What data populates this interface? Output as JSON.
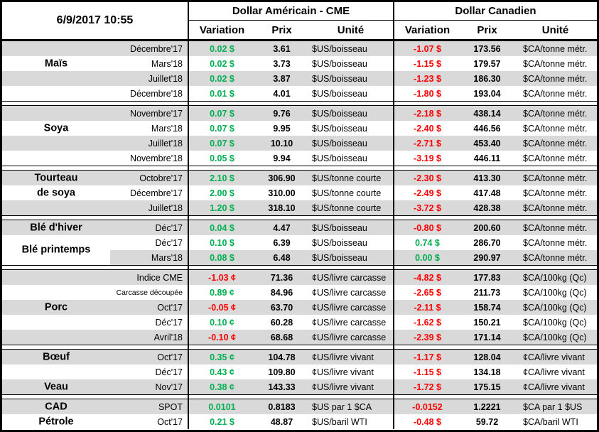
{
  "meta": {
    "timestamp": "6/9/2017 10:55"
  },
  "header": {
    "us_title": "Dollar Américain - CME",
    "ca_title": "Dollar Canadien",
    "cols": {
      "variation": "Variation",
      "prix": "Prix",
      "unite": "Unité"
    }
  },
  "colors": {
    "up": "#00B050",
    "down": "#FF0000",
    "stripe": "#D9D9D9"
  },
  "groups": [
    {
      "labels": [
        {
          "text": "Maïs",
          "row": 1.5
        }
      ],
      "rows": [
        {
          "month": "Décembre'17",
          "shade": "gray",
          "us": {
            "var": "0.02 $",
            "prix": "3.61",
            "unit": "$US/boisseau"
          },
          "ca": {
            "var": "-1.07 $",
            "prix": "173.56",
            "unit": "$CA/tonne métr."
          }
        },
        {
          "month": "Mars'18",
          "shade": "white",
          "us": {
            "var": "0.02 $",
            "prix": "3.73",
            "unit": "$US/boisseau"
          },
          "ca": {
            "var": "-1.15 $",
            "prix": "179.57",
            "unit": "$CA/tonne métr."
          }
        },
        {
          "month": "Juillet'18",
          "shade": "gray",
          "us": {
            "var": "0.02 $",
            "prix": "3.87",
            "unit": "$US/boisseau"
          },
          "ca": {
            "var": "-1.23 $",
            "prix": "186.30",
            "unit": "$CA/tonne métr."
          }
        },
        {
          "month": "Décembre'18",
          "shade": "white",
          "us": {
            "var": "0.01 $",
            "prix": "4.01",
            "unit": "$US/boisseau"
          },
          "ca": {
            "var": "-1.80 $",
            "prix": "193.04",
            "unit": "$CA/tonne métr."
          }
        }
      ]
    },
    {
      "labels": [
        {
          "text": "Soya",
          "row": 1.5
        }
      ],
      "rows": [
        {
          "month": "Novembre'17",
          "shade": "gray",
          "us": {
            "var": "0.07 $",
            "prix": "9.76",
            "unit": "$US/boisseau"
          },
          "ca": {
            "var": "-2.18 $",
            "prix": "438.14",
            "unit": "$CA/tonne métr."
          }
        },
        {
          "month": "Mars'18",
          "shade": "white",
          "us": {
            "var": "0.07 $",
            "prix": "9.95",
            "unit": "$US/boisseau"
          },
          "ca": {
            "var": "-2.40 $",
            "prix": "446.56",
            "unit": "$CA/tonne métr."
          }
        },
        {
          "month": "Juillet'18",
          "shade": "gray",
          "us": {
            "var": "0.07 $",
            "prix": "10.10",
            "unit": "$US/boisseau"
          },
          "ca": {
            "var": "-2.71 $",
            "prix": "453.40",
            "unit": "$CA/tonne métr."
          }
        },
        {
          "month": "Novembre'18",
          "shade": "white",
          "us": {
            "var": "0.05 $",
            "prix": "9.94",
            "unit": "$US/boisseau"
          },
          "ca": {
            "var": "-3.19 $",
            "prix": "446.11",
            "unit": "$CA/tonne métr."
          }
        }
      ]
    },
    {
      "labels": [
        {
          "text": "Tourteau",
          "row": 0.5
        },
        {
          "text": "de soya",
          "row": 1.5
        }
      ],
      "rows": [
        {
          "month": "Octobre'17",
          "shade": "gray",
          "us": {
            "var": "2.10 $",
            "prix": "306.90",
            "unit": "$US/tonne courte"
          },
          "ca": {
            "var": "-2.30 $",
            "prix": "413.30",
            "unit": "$CA/tonne métr."
          }
        },
        {
          "month": "Décembre'17",
          "shade": "white",
          "us": {
            "var": "2.00 $",
            "prix": "310.00",
            "unit": "$US/tonne courte"
          },
          "ca": {
            "var": "-2.49 $",
            "prix": "417.48",
            "unit": "$CA/tonne métr."
          }
        },
        {
          "month": "Juillet'18",
          "shade": "gray",
          "us": {
            "var": "1.20 $",
            "prix": "318.10",
            "unit": "$US/tonne courte"
          },
          "ca": {
            "var": "-3.72 $",
            "prix": "428.38",
            "unit": "$CA/tonne métr."
          }
        }
      ]
    },
    {
      "labels": [
        {
          "text": "Blé d'hiver",
          "row": 0.5
        },
        {
          "text": "Blé printemps",
          "row": 2.0
        }
      ],
      "rows": [
        {
          "month": "Déc'17",
          "shade": "gray",
          "us": {
            "var": "0.04 $",
            "prix": "4.47",
            "unit": "$US/boisseau"
          },
          "ca": {
            "var": "-0.80 $",
            "prix": "200.60",
            "unit": "$CA/tonne métr."
          }
        },
        {
          "month": "Déc'17",
          "shade": "white",
          "us": {
            "var": "0.10 $",
            "prix": "6.39",
            "unit": "$US/boisseau"
          },
          "ca": {
            "var": "0.74 $",
            "prix": "286.70",
            "unit": "$CA/tonne métr."
          }
        },
        {
          "month": "Mars'18",
          "shade": "partial",
          "us": {
            "var": "0.08 $",
            "prix": "6.48",
            "unit": "$US/boisseau"
          },
          "ca": {
            "var": "0.00 $",
            "prix": "290.97",
            "unit": "$CA/tonne métr."
          }
        }
      ]
    },
    {
      "labels": [
        {
          "text": "Porc",
          "row": 2.5
        }
      ],
      "rows": [
        {
          "month": "Indice CME",
          "shade": "gray",
          "us": {
            "var": "-1.03 ¢",
            "prix": "71.36",
            "unit": "¢US/livre carcasse"
          },
          "ca": {
            "var": "-4.82 $",
            "prix": "177.83",
            "unit": "$CA/100kg (Qc)"
          }
        },
        {
          "month": "Carcasse découpée",
          "shade": "white",
          "us": {
            "var": "0.89 ¢",
            "prix": "84.96",
            "unit": "¢US/livre carcasse"
          },
          "ca": {
            "var": "-2.65 $",
            "prix": "211.73",
            "unit": "$CA/100kg (Qc)"
          }
        },
        {
          "month": "Oct'17",
          "shade": "gray",
          "us": {
            "var": "-0.05 ¢",
            "prix": "63.70",
            "unit": "¢US/livre carcasse"
          },
          "ca": {
            "var": "-2.11 $",
            "prix": "158.74",
            "unit": "$CA/100kg (Qc)"
          }
        },
        {
          "month": "Déc'17",
          "shade": "white",
          "us": {
            "var": "0.10 ¢",
            "prix": "60.28",
            "unit": "¢US/livre carcasse"
          },
          "ca": {
            "var": "-1.62 $",
            "prix": "150.21",
            "unit": "$CA/100kg (Qc)"
          }
        },
        {
          "month": "Avril'18",
          "shade": "gray",
          "us": {
            "var": "-0.10 ¢",
            "prix": "68.68",
            "unit": "¢US/livre carcasse"
          },
          "ca": {
            "var": "-2.39 $",
            "prix": "171.14",
            "unit": "$CA/100kg (Qc)"
          }
        }
      ]
    },
    {
      "labels": [
        {
          "text": "Bœuf",
          "row": 0.5
        },
        {
          "text": "Veau",
          "row": 2.5
        }
      ],
      "rows": [
        {
          "month": "Oct'17",
          "shade": "gray",
          "us": {
            "var": "0.35 ¢",
            "prix": "104.78",
            "unit": "¢US/livre vivant"
          },
          "ca": {
            "var": "-1.17 $",
            "prix": "128.04",
            "unit": "¢CA/livre vivant"
          }
        },
        {
          "month": "Déc'17",
          "shade": "white",
          "us": {
            "var": "0.43 ¢",
            "prix": "109.80",
            "unit": "¢US/livre vivant"
          },
          "ca": {
            "var": "-1.15 $",
            "prix": "134.18",
            "unit": "¢CA/livre vivant"
          }
        },
        {
          "month": "Nov'17",
          "shade": "gray",
          "us": {
            "var": "0.38 ¢",
            "prix": "143.33",
            "unit": "¢US/livre vivant"
          },
          "ca": {
            "var": "-1.72 $",
            "prix": "175.15",
            "unit": "¢CA/livre vivant"
          }
        }
      ]
    },
    {
      "labels": [
        {
          "text": "CAD",
          "row": 0.5
        },
        {
          "text": "Pétrole",
          "row": 1.5
        }
      ],
      "rows": [
        {
          "month": "SPOT",
          "shade": "gray",
          "us": {
            "var": "0.0101",
            "prix": "0.8183",
            "unit": "$US par 1 $CA"
          },
          "ca": {
            "var": "-0.0152",
            "prix": "1.2221",
            "unit": "$CA par 1 $US"
          }
        },
        {
          "month": "Oct'17",
          "shade": "white",
          "us": {
            "var": "0.21 $",
            "prix": "48.87",
            "unit": "$US/baril WTI"
          },
          "ca": {
            "var": "-0.48 $",
            "prix": "59.72",
            "unit": "$CA/baril WTI"
          }
        }
      ]
    }
  ]
}
